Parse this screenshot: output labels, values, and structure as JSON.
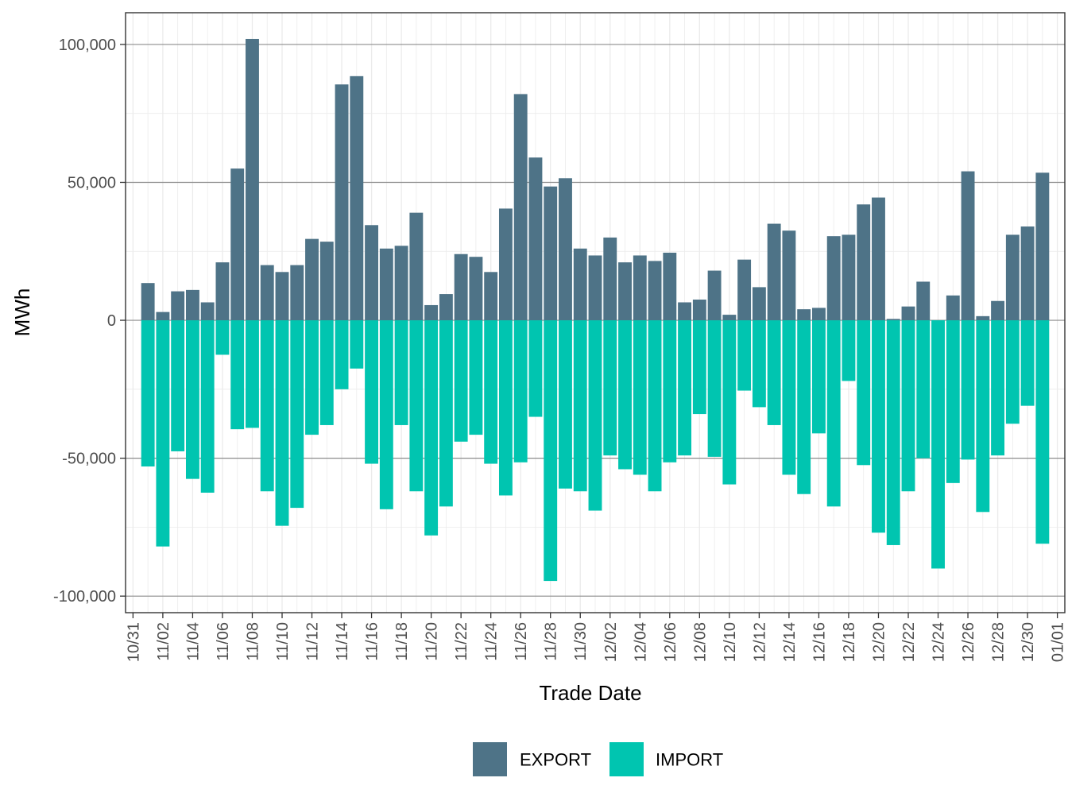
{
  "chart_data": {
    "type": "bar",
    "stacked": "diverging",
    "xlabel": "Trade Date",
    "ylabel": "MWh",
    "ylim": [
      -106000,
      111500
    ],
    "yticks": [
      -100000,
      -50000,
      0,
      50000,
      100000
    ],
    "ytick_labels": [
      "-100,000",
      "-50,000",
      "0",
      "50,000",
      "100,000"
    ],
    "x_tick_labels": [
      "10/31",
      "11/02",
      "11/04",
      "11/06",
      "11/08",
      "11/10",
      "11/12",
      "11/14",
      "11/16",
      "11/18",
      "11/20",
      "11/22",
      "11/24",
      "11/26",
      "11/28",
      "11/30",
      "12/02",
      "12/04",
      "12/06",
      "12/08",
      "12/10",
      "12/12",
      "12/14",
      "12/16",
      "12/18",
      "12/20",
      "12/22",
      "12/24",
      "12/26",
      "12/28",
      "12/30",
      "01/01"
    ],
    "categories": [
      "11/01",
      "11/02",
      "11/03",
      "11/04",
      "11/05",
      "11/06",
      "11/07",
      "11/08",
      "11/09",
      "11/10",
      "11/11",
      "11/12",
      "11/13",
      "11/14",
      "11/15",
      "11/16",
      "11/17",
      "11/18",
      "11/19",
      "11/20",
      "11/21",
      "11/22",
      "11/23",
      "11/24",
      "11/25",
      "11/26",
      "11/27",
      "11/28",
      "11/29",
      "11/30",
      "12/01",
      "12/02",
      "12/03",
      "12/04",
      "12/05",
      "12/06",
      "12/07",
      "12/08",
      "12/09",
      "12/10",
      "12/11",
      "12/12",
      "12/13",
      "12/14",
      "12/15",
      "12/16",
      "12/17",
      "12/18",
      "12/19",
      "12/20",
      "12/21",
      "12/22",
      "12/23",
      "12/24",
      "12/25",
      "12/26",
      "12/27",
      "12/28",
      "12/29",
      "12/30",
      "12/31"
    ],
    "series": [
      {
        "name": "EXPORT",
        "color": "#4e7387",
        "values": [
          13500,
          3000,
          10500,
          11000,
          6500,
          21000,
          55000,
          102000,
          20000,
          17500,
          20000,
          29500,
          28500,
          85500,
          88500,
          34500,
          26000,
          27000,
          39000,
          5500,
          9500,
          24000,
          23000,
          17500,
          40500,
          82000,
          59000,
          48500,
          51500,
          26000,
          23500,
          30000,
          21000,
          23500,
          21500,
          24500,
          6500,
          7500,
          18000,
          2000,
          22000,
          12000,
          35000,
          32500,
          4000,
          4500,
          30500,
          31000,
          42000,
          44500,
          500,
          5000,
          14000,
          0,
          9000,
          54000,
          1500,
          7000,
          31000,
          34000,
          53500
        ]
      },
      {
        "name": "IMPORT",
        "color": "#00c5b0",
        "values": [
          -53000,
          -82000,
          -47500,
          -57500,
          -62500,
          -12500,
          -39500,
          -39000,
          -62000,
          -74500,
          -68000,
          -41500,
          -38000,
          -25000,
          -17500,
          -52000,
          -68500,
          -38000,
          -62000,
          -78000,
          -67500,
          -44000,
          -41500,
          -52000,
          -63500,
          -51500,
          -35000,
          -94500,
          -61000,
          -62000,
          -69000,
          -49000,
          -54000,
          -56000,
          -62000,
          -51500,
          -49000,
          -34000,
          -49500,
          -59500,
          -25500,
          -31500,
          -38000,
          -56000,
          -63000,
          -41000,
          -67500,
          -22000,
          -52500,
          -77000,
          -81500,
          -62000,
          -50000,
          -90000,
          -59000,
          -50500,
          -69500,
          -49000,
          -37500,
          -31000,
          -81000
        ]
      }
    ],
    "grid": true,
    "legend": "bottom"
  }
}
